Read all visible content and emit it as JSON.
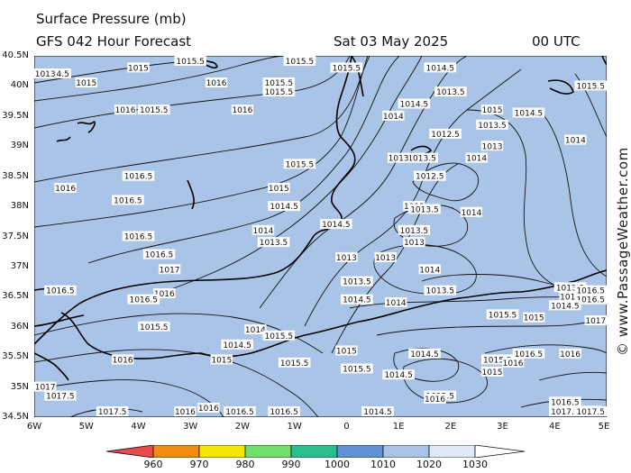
{
  "header": {
    "title": "Surface Pressure (mb)",
    "subtitle": "GFS 042 Hour Forecast",
    "date": "Sat 03 May 2025",
    "time": "00 UTC"
  },
  "credit": "© www.PassageWeather.com",
  "map": {
    "background_color": "#a9c4e6",
    "land_color": "#a9c4e6",
    "coastline_color": "#000000",
    "isobar_color": "#111111",
    "lat_labels": [
      "40.5N",
      "40N",
      "39.5N",
      "39N",
      "38.5N",
      "38N",
      "37.5N",
      "37N",
      "36.5N",
      "36N",
      "35.5N",
      "35N",
      "34.5N"
    ],
    "lon_labels": [
      "6W",
      "5W",
      "4W",
      "3W",
      "2W",
      "1W",
      "0",
      "1E",
      "2E",
      "3E",
      "4E",
      "5E"
    ],
    "isobar_labels": [
      {
        "text": "1015.5",
        "lon": -3.0,
        "lat": 40.5
      },
      {
        "text": "1015",
        "lon": -4.0,
        "lat": 40.3
      },
      {
        "text": "1015",
        "lon": -5.0,
        "lat": 40.05
      },
      {
        "text": "1014.5",
        "lon": -5.6,
        "lat": 40.2
      },
      {
        "text": "1016",
        "lon": -2.5,
        "lat": 40.05
      },
      {
        "text": "1015.5",
        "lon": -1.3,
        "lat": 40.05
      },
      {
        "text": "1015.5",
        "lon": -1.3,
        "lat": 39.9
      },
      {
        "text": "1015.5",
        "lon": -0.9,
        "lat": 40.45
      },
      {
        "text": "1015.5",
        "lon": 0.0,
        "lat": 40.3
      },
      {
        "text": "1014.5",
        "lon": 1.8,
        "lat": 40.3
      },
      {
        "text": "1016",
        "lon": -4.25,
        "lat": 39.6
      },
      {
        "text": "1015.5",
        "lon": -3.7,
        "lat": 39.6
      },
      {
        "text": "1016",
        "lon": -2.0,
        "lat": 39.6
      },
      {
        "text": "1014.5",
        "lon": 1.3,
        "lat": 39.7
      },
      {
        "text": "1014",
        "lon": 0.9,
        "lat": 39.5
      },
      {
        "text": "1013.5",
        "lon": 2.0,
        "lat": 39.9
      },
      {
        "text": "1015",
        "lon": 2.8,
        "lat": 39.6
      },
      {
        "text": "1014.5",
        "lon": 3.5,
        "lat": 39.55
      },
      {
        "text": "1013.5",
        "lon": 2.8,
        "lat": 39.35
      },
      {
        "text": "1012.5",
        "lon": 1.9,
        "lat": 39.2
      },
      {
        "text": "1013",
        "lon": 2.8,
        "lat": 39.0
      },
      {
        "text": "1014",
        "lon": 4.4,
        "lat": 39.1
      },
      {
        "text": "1013.5",
        "lon": 1.45,
        "lat": 38.8
      },
      {
        "text": "1013",
        "lon": 1.0,
        "lat": 38.8
      },
      {
        "text": "1014",
        "lon": 2.5,
        "lat": 38.8
      },
      {
        "text": "1012.5",
        "lon": 1.6,
        "lat": 38.5
      },
      {
        "text": "1015.5",
        "lon": -0.9,
        "lat": 38.7
      },
      {
        "text": "1016.5",
        "lon": -4.0,
        "lat": 38.5
      },
      {
        "text": "1016",
        "lon": -5.4,
        "lat": 38.3
      },
      {
        "text": "1015",
        "lon": -1.3,
        "lat": 38.3
      },
      {
        "text": "1016.5",
        "lon": -4.2,
        "lat": 38.1
      },
      {
        "text": "1014.5",
        "lon": -1.2,
        "lat": 38.0
      },
      {
        "text": "1013",
        "lon": 1.3,
        "lat": 38.0
      },
      {
        "text": "1013.5",
        "lon": 1.5,
        "lat": 37.95
      },
      {
        "text": "1014",
        "lon": 2.4,
        "lat": 37.9
      },
      {
        "text": "1014.5",
        "lon": -0.2,
        "lat": 37.7
      },
      {
        "text": "1014",
        "lon": -1.6,
        "lat": 37.6
      },
      {
        "text": "1013.5",
        "lon": 1.3,
        "lat": 37.6
      },
      {
        "text": "1013",
        "lon": 1.3,
        "lat": 37.4
      },
      {
        "text": "1016.5",
        "lon": -4.0,
        "lat": 37.5
      },
      {
        "text": "1013.5",
        "lon": -1.4,
        "lat": 37.4
      },
      {
        "text": "1016.5",
        "lon": -3.6,
        "lat": 37.2
      },
      {
        "text": "1013",
        "lon": 0.0,
        "lat": 37.15
      },
      {
        "text": "1013",
        "lon": 0.75,
        "lat": 37.15
      },
      {
        "text": "1017",
        "lon": -3.4,
        "lat": 36.95
      },
      {
        "text": "1014",
        "lon": 1.6,
        "lat": 36.95
      },
      {
        "text": "1013.5",
        "lon": 0.2,
        "lat": 36.75
      },
      {
        "text": "1016.5",
        "lon": -5.5,
        "lat": 36.6
      },
      {
        "text": "1016",
        "lon": -3.5,
        "lat": 36.55
      },
      {
        "text": "1016.5",
        "lon": -3.9,
        "lat": 36.45
      },
      {
        "text": "1013.5",
        "lon": 1.8,
        "lat": 36.6
      },
      {
        "text": "1014.5",
        "lon": 0.2,
        "lat": 36.45
      },
      {
        "text": "1014",
        "lon": 0.95,
        "lat": 36.4
      },
      {
        "text": "1013.5",
        "lon": 4.3,
        "lat": 36.65
      },
      {
        "text": "1014",
        "lon": 4.3,
        "lat": 36.5
      },
      {
        "text": "1016.5",
        "lon": 4.9,
        "lat": 36.6
      },
      {
        "text": "1016.5",
        "lon": 4.85,
        "lat": 36.45
      },
      {
        "text": "1014.5",
        "lon": 4.2,
        "lat": 36.35
      },
      {
        "text": "1015.5",
        "lon": 3.0,
        "lat": 36.2
      },
      {
        "text": "1015",
        "lon": 3.6,
        "lat": 36.15
      },
      {
        "text": "1015.5",
        "lon": -3.7,
        "lat": 36.0
      },
      {
        "text": "1014",
        "lon": -1.75,
        "lat": 35.95
      },
      {
        "text": "1017",
        "lon": 5.0,
        "lat": 36.1
      },
      {
        "text": "1014.5",
        "lon": -2.1,
        "lat": 35.7
      },
      {
        "text": "1015.5",
        "lon": -1.3,
        "lat": 35.85
      },
      {
        "text": "1015",
        "lon": 0.0,
        "lat": 35.6
      },
      {
        "text": "1014.5",
        "lon": 1.5,
        "lat": 35.55
      },
      {
        "text": "1016",
        "lon": 4.3,
        "lat": 35.55
      },
      {
        "text": "1016",
        "lon": -4.3,
        "lat": 35.45
      },
      {
        "text": "1015",
        "lon": -2.4,
        "lat": 35.45
      },
      {
        "text": "1015.5",
        "lon": -1.0,
        "lat": 35.4
      },
      {
        "text": "1015.5",
        "lon": 0.2,
        "lat": 35.3
      },
      {
        "text": "1016.5",
        "lon": 3.5,
        "lat": 35.55
      },
      {
        "text": "1015.5",
        "lon": 2.9,
        "lat": 35.45
      },
      {
        "text": "1016",
        "lon": 3.2,
        "lat": 35.4
      },
      {
        "text": "1015",
        "lon": 2.8,
        "lat": 35.25
      },
      {
        "text": "1014.5",
        "lon": 1.0,
        "lat": 35.2
      },
      {
        "text": "1017",
        "lon": -5.8,
        "lat": 35.0
      },
      {
        "text": "1017.5",
        "lon": -5.5,
        "lat": 34.85
      },
      {
        "text": "1016",
        "lon": -2.65,
        "lat": 34.65
      },
      {
        "text": "1015.5",
        "lon": 1.8,
        "lat": 34.85
      },
      {
        "text": "1016",
        "lon": 1.7,
        "lat": 34.8
      },
      {
        "text": "1016.5",
        "lon": -2.05,
        "lat": 34.55
      },
      {
        "text": "1016.5",
        "lon": -1.2,
        "lat": 34.4
      },
      {
        "text": "1016.5",
        "lon": 4.2,
        "lat": 34.75
      },
      {
        "text": "1017",
        "lon": 4.7,
        "lat": 34.6
      },
      {
        "text": "1017.5",
        "lon": -4.5,
        "lat": 34.3
      },
      {
        "text": "1014.5",
        "lon": 0.6,
        "lat": 34.3
      },
      {
        "text": "1017.5",
        "lon": 4.2,
        "lat": 34.3
      },
      {
        "text": "1016",
        "lon": -3.1,
        "lat": 34.1
      },
      {
        "text": "1017.5",
        "lon": 4.7,
        "lat": 34.1
      },
      {
        "text": "1013",
        "lon": -5.9,
        "lat": 40.2
      },
      {
        "text": "1015.5",
        "lon": 4.9,
        "lat": 40.0
      }
    ]
  },
  "legend": {
    "labels": [
      "960",
      "970",
      "980",
      "990",
      "1000",
      "1010",
      "1020",
      "1030"
    ],
    "colors": [
      "#e8494d",
      "#f08a10",
      "#f5e500",
      "#6fe06a",
      "#2bbf8f",
      "#5f93d6",
      "#a9c4e6",
      "#dfe9f7"
    ]
  }
}
